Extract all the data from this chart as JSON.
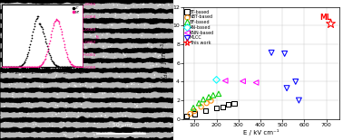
{
  "fig_width": 3.78,
  "fig_height": 1.55,
  "dpi": 100,
  "scatter": {
    "BT": {
      "color": "black",
      "marker": "s",
      "points": [
        [
          65,
          0.3
        ],
        [
          100,
          0.55
        ],
        [
          150,
          0.9
        ],
        [
          200,
          1.15
        ],
        [
          230,
          1.3
        ],
        [
          255,
          1.55
        ],
        [
          280,
          1.7
        ]
      ]
    },
    "NBT": {
      "color": "#FF8800",
      "marker": "o",
      "points": [
        [
          80,
          0.55
        ],
        [
          100,
          0.85
        ],
        [
          130,
          1.3
        ],
        [
          155,
          1.7
        ],
        [
          175,
          1.95
        ]
      ]
    },
    "BF": {
      "color": "#00CC00",
      "marker": "^",
      "points": [
        [
          95,
          1.2
        ],
        [
          120,
          1.7
        ],
        [
          140,
          2.1
        ],
        [
          165,
          2.35
        ],
        [
          185,
          2.55
        ],
        [
          210,
          2.7
        ]
      ]
    },
    "AN": {
      "color": "cyan",
      "marker": "D",
      "points": [
        [
          200,
          4.2
        ]
      ]
    },
    "KNN": {
      "color": "magenta",
      "marker": "<",
      "points": [
        [
          240,
          4.1
        ],
        [
          320,
          4.05
        ],
        [
          380,
          3.9
        ]
      ]
    },
    "MLCC": {
      "color": "blue",
      "marker": "v",
      "points": [
        [
          450,
          7.1
        ],
        [
          510,
          7.0
        ],
        [
          520,
          3.3
        ],
        [
          560,
          4.0
        ],
        [
          575,
          2.0
        ]
      ]
    },
    "This work": {
      "color": "red",
      "marker": "*",
      "points": [
        [
          720,
          10.2
        ]
      ]
    }
  },
  "legend_labels": [
    "BT-based",
    "NBT-based",
    "BF-based",
    "AN-based",
    "KNN-based",
    "MLCC",
    "This work"
  ],
  "legend_colors": [
    "black",
    "#FF8800",
    "#00CC00",
    "cyan",
    "magenta",
    "blue",
    "red"
  ],
  "legend_markers": [
    "s",
    "o",
    "^",
    "D",
    "<",
    "v",
    "*"
  ],
  "xlabel": "E / kV cm⁻¹",
  "ylabel": "W$_{dis}$ / J cm$^{-3}$",
  "xlim": [
    50,
    760
  ],
  "ylim": [
    0,
    12
  ],
  "xticks": [
    100,
    200,
    300,
    400,
    500,
    600,
    700
  ],
  "yticks": [
    0,
    2,
    4,
    6,
    8,
    10,
    12
  ],
  "ml_label": "ML",
  "ml_label_color": "red",
  "bg_color": "white",
  "grid_color": "#cccccc",
  "n_stripes": 14,
  "stripe_color": "#b8b8b8"
}
